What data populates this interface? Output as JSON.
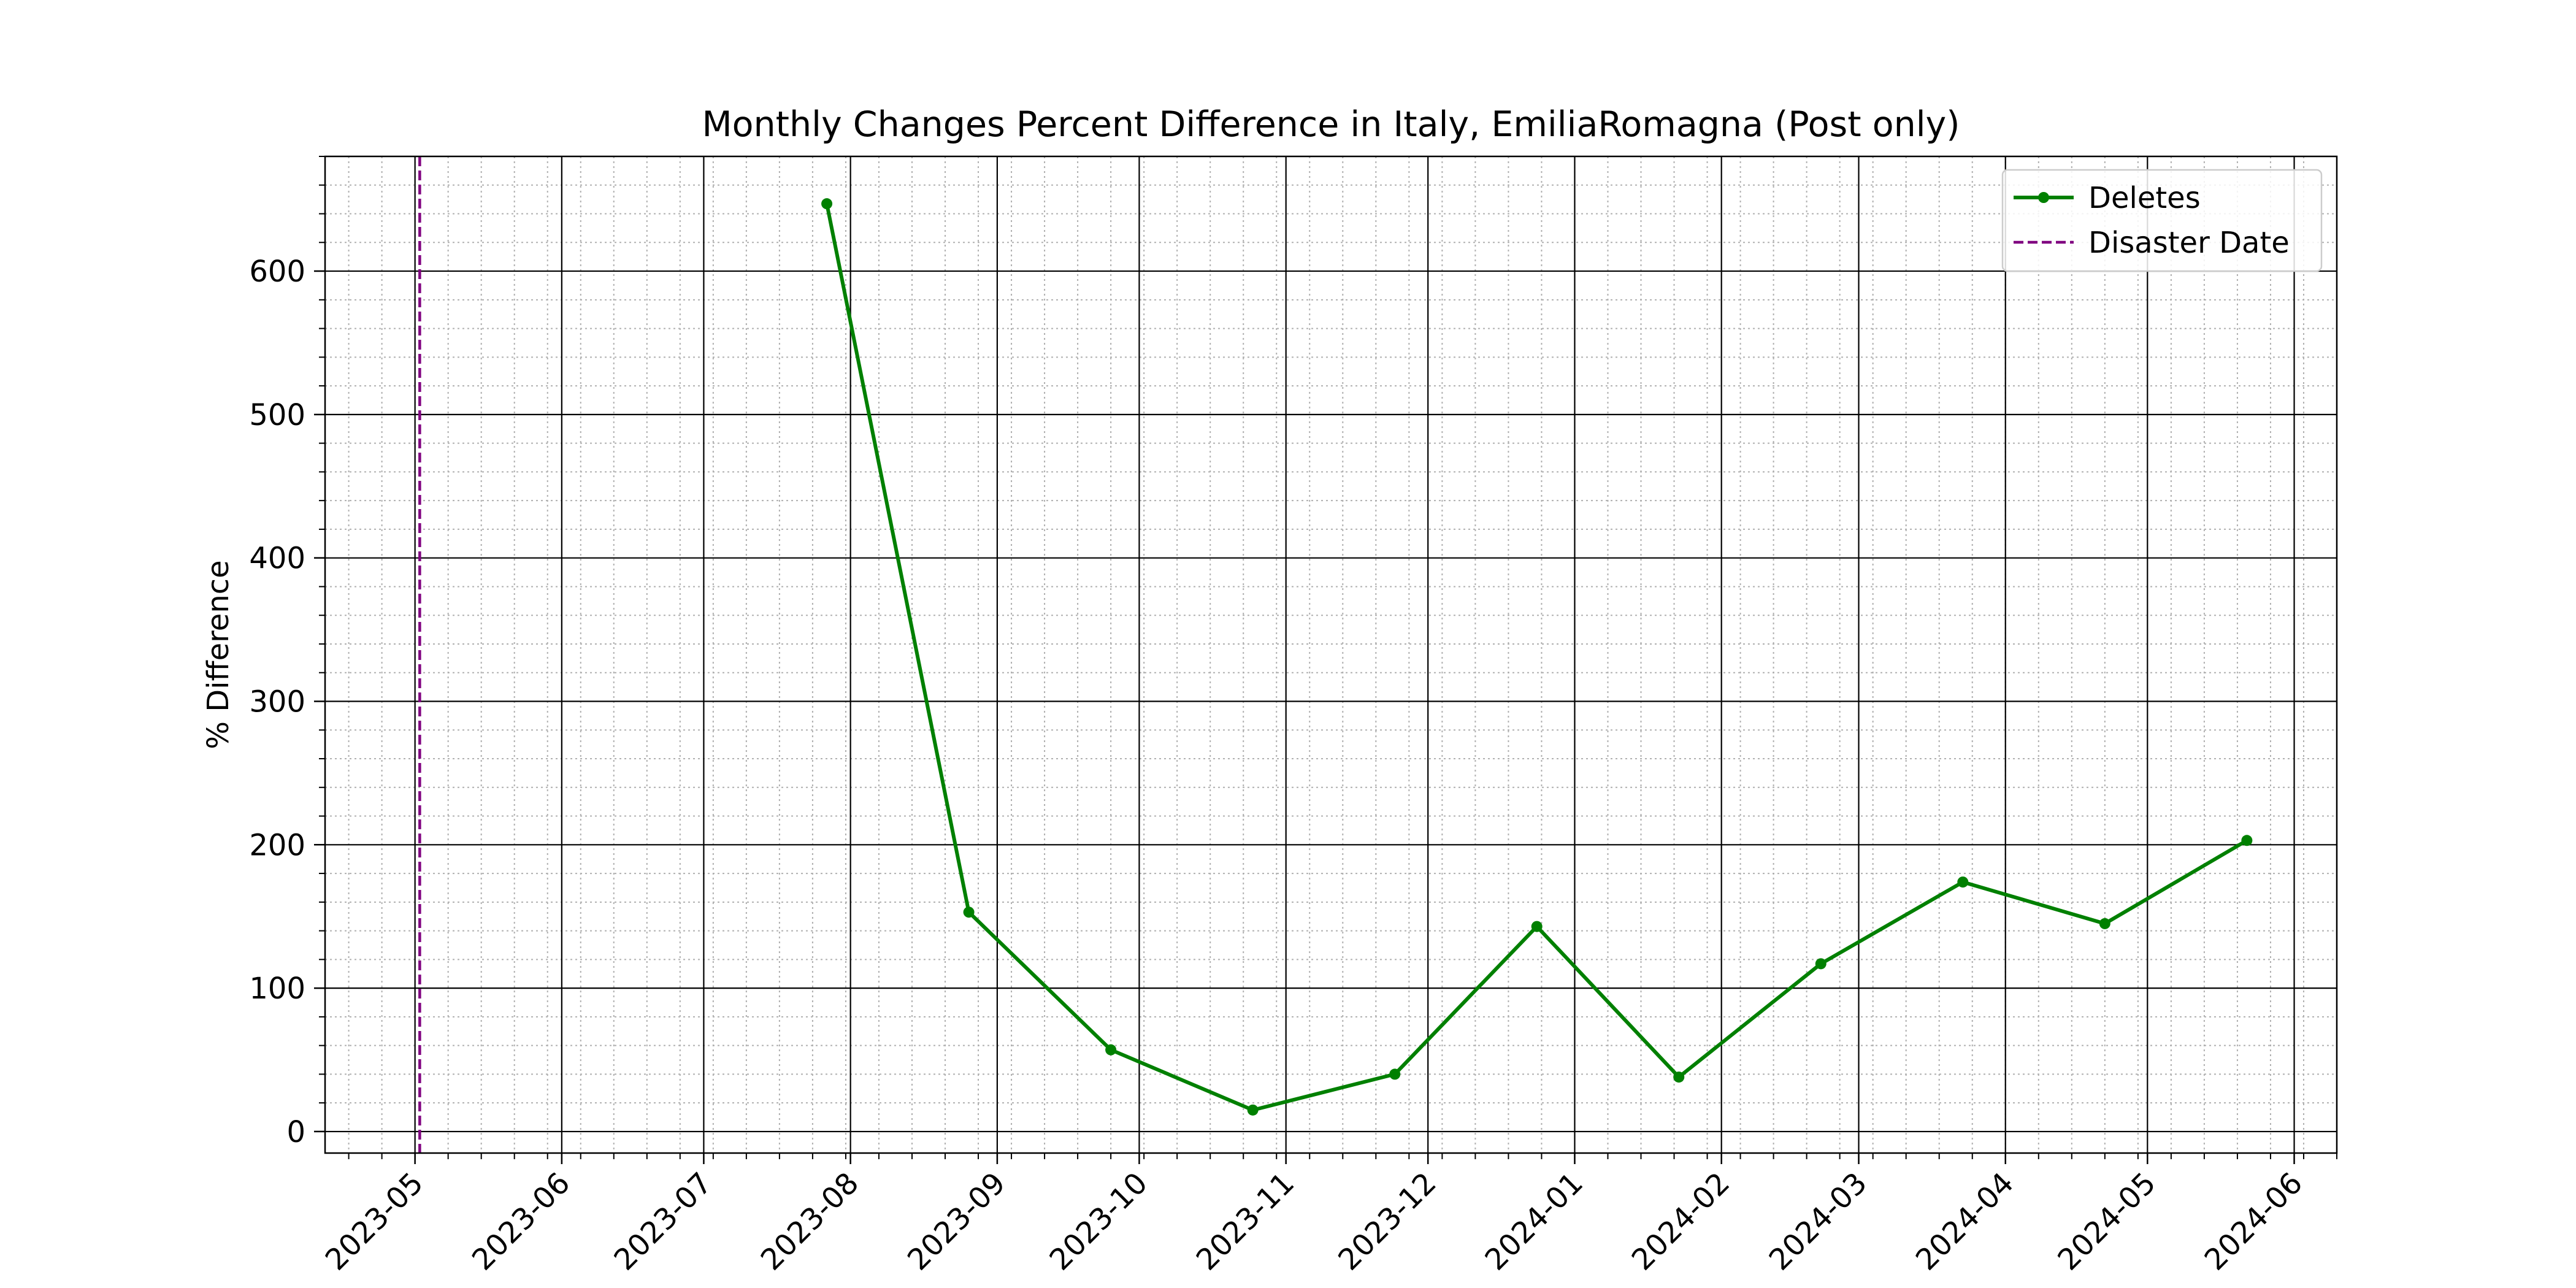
{
  "chart_data": {
    "type": "line",
    "title": "Monthly Changes Percent Difference in Italy, EmiliaRomagna (Post only)",
    "xlabel": "",
    "ylabel": "% Difference",
    "xlim": [
      "2023-04-12",
      "2024-06-10"
    ],
    "ylim": [
      -15,
      680
    ],
    "x_ticks": [
      "2023-05",
      "2023-06",
      "2023-07",
      "2023-08",
      "2023-09",
      "2023-10",
      "2023-11",
      "2023-12",
      "2024-01",
      "2024-02",
      "2024-03",
      "2024-04",
      "2024-05",
      "2024-06"
    ],
    "y_ticks": [
      0,
      100,
      200,
      300,
      400,
      500,
      600
    ],
    "grid": {
      "major": true,
      "minor": true
    },
    "legend_position": "top-right",
    "series": [
      {
        "name": "Deletes",
        "color": "#008000",
        "marker": "circle",
        "x": [
          "2023-07-27",
          "2023-08-26",
          "2023-09-25",
          "2023-10-25",
          "2023-11-24",
          "2023-12-24",
          "2024-01-23",
          "2024-02-22",
          "2024-03-23",
          "2024-04-22",
          "2024-05-22"
        ],
        "y": [
          647,
          153,
          57,
          15,
          40,
          143,
          38,
          117,
          174,
          145,
          203
        ]
      }
    ],
    "reference_lines": [
      {
        "name": "Disaster Date",
        "orientation": "vertical",
        "x": "2023-05-02",
        "color": "#800080",
        "style": "dashed"
      }
    ]
  }
}
